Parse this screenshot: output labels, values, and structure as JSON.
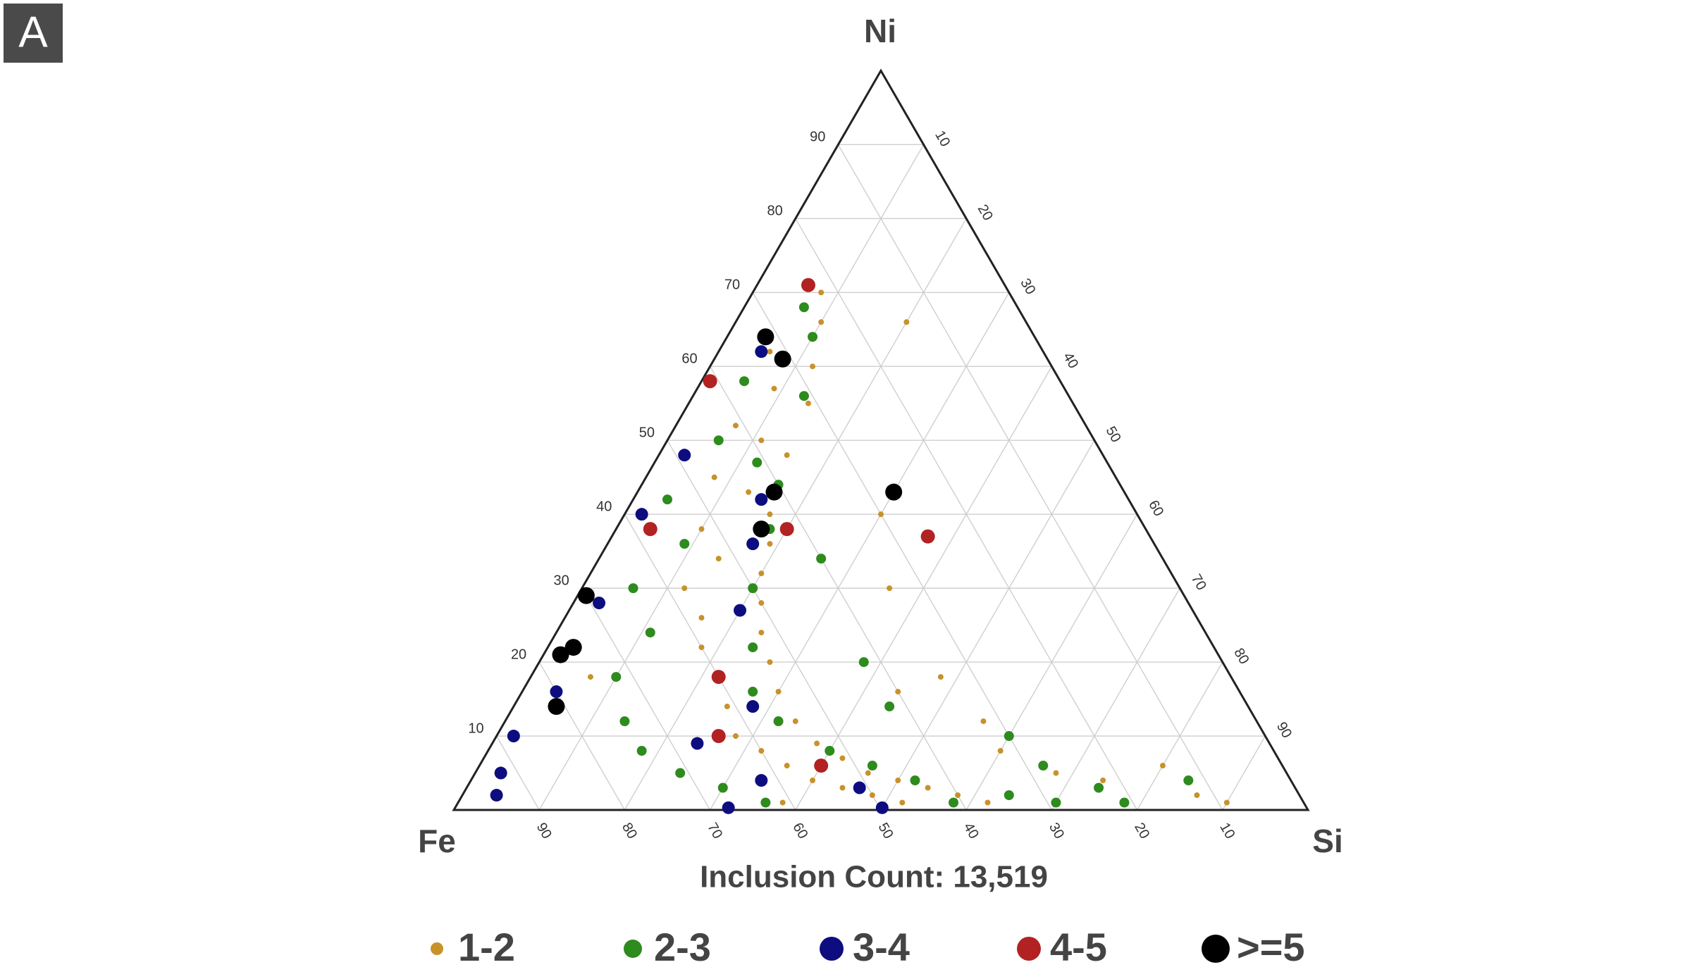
{
  "panel_label": "A",
  "chart_data": {
    "type": "ternary",
    "top_label": "Ni",
    "left_label": "Fe",
    "right_label": "Si",
    "annotation": "Inclusion Count: 13,519",
    "niticks": [
      10,
      20,
      30,
      40,
      50,
      60,
      70,
      80,
      90
    ],
    "siticks": [
      10,
      20,
      30,
      40,
      50,
      60,
      70,
      80,
      90
    ],
    "feticks": [
      10,
      20,
      30,
      40,
      50,
      60,
      70,
      80,
      90
    ],
    "grid": true,
    "series": [
      {
        "name": "1-2",
        "color": "#c8922a",
        "si": [
          8,
          10,
          6,
          12,
          9,
          14,
          7,
          11,
          15,
          8,
          13,
          17,
          10,
          19,
          14,
          20,
          12,
          22,
          16,
          24,
          18,
          27,
          22,
          30,
          25,
          34,
          28,
          38,
          32,
          42,
          36,
          46,
          40,
          50,
          44,
          54,
          48,
          58,
          38,
          62,
          52,
          68,
          74,
          80,
          86,
          90,
          20,
          30,
          36,
          44,
          48,
          56,
          60,
          7
        ],
        "ni": [
          70,
          66,
          62,
          60,
          57,
          55,
          52,
          50,
          48,
          45,
          43,
          40,
          38,
          36,
          34,
          32,
          30,
          28,
          26,
          24,
          22,
          20,
          18,
          16,
          14,
          12,
          10,
          9,
          8,
          7,
          6,
          5,
          4,
          4,
          3,
          3,
          2,
          2,
          1,
          1,
          1,
          5,
          4,
          6,
          2,
          1,
          66,
          40,
          30,
          16,
          18,
          12,
          8,
          18
        ]
      },
      {
        "name": "2-3",
        "color": "#2e8b1e",
        "si": [
          7,
          10,
          5,
          13,
          6,
          12,
          4,
          16,
          9,
          18,
          6,
          20,
          11,
          24,
          10,
          27,
          14,
          32,
          18,
          40,
          24,
          46,
          30,
          52,
          36,
          58,
          64,
          66,
          70,
          74,
          78,
          84,
          60,
          44,
          38,
          26
        ],
        "ni": [
          68,
          64,
          58,
          56,
          50,
          47,
          42,
          44,
          36,
          38,
          30,
          30,
          24,
          22,
          18,
          16,
          12,
          12,
          8,
          8,
          5,
          6,
          3,
          4,
          1,
          1,
          2,
          6,
          1,
          3,
          1,
          4,
          10,
          14,
          20,
          34
        ]
      },
      {
        "name": "3-4",
        "color": "#0d0d80",
        "si": [
          5,
          3,
          15,
          2,
          17,
          3,
          20,
          4,
          22,
          2,
          24,
          3,
          34,
          4,
          46,
          32,
          50,
          28
        ],
        "ni": [
          62,
          48,
          42,
          40,
          36,
          28,
          27,
          16,
          18,
          10,
          9,
          5,
          4,
          2,
          3,
          0.3,
          0.3,
          14
        ]
      },
      {
        "name": "4-5",
        "color": "#b22222",
        "si": [
          6,
          1,
          4,
          20,
          22,
          40,
          26,
          37
        ],
        "ni": [
          71,
          58,
          38,
          38,
          18,
          6,
          10,
          37
        ]
      },
      {
        "name": ">=5",
        "color": "#000000",
        "si": [
          4.5,
          8,
          16,
          17,
          1,
          2,
          3,
          5,
          30
        ],
        "ni": [
          64,
          61,
          43,
          38,
          29,
          21,
          22,
          14,
          43
        ]
      }
    ]
  }
}
